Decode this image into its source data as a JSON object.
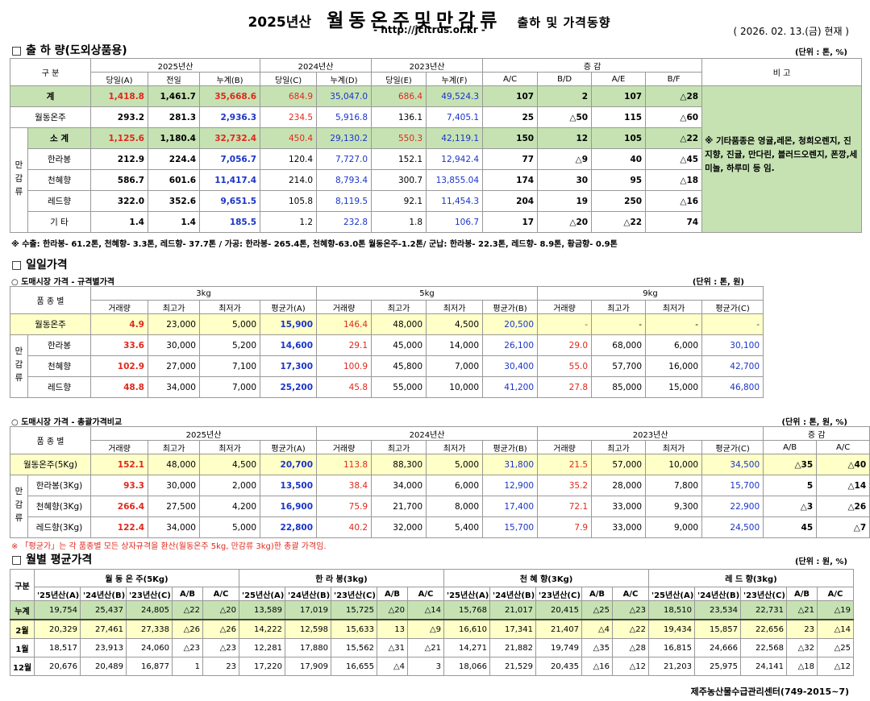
{
  "header": {
    "year_label": "2025년산",
    "main_title": "월동온주및만감류",
    "sub_title": "출하 및 가격동향",
    "url": "- http://jcitrus.or.kr -",
    "date": "( 2026. 02. 13.(금) 현재 )"
  },
  "shipment": {
    "heading": "□ 출 하 량(도외상품용)",
    "unit": "(단위 : 톤, %)",
    "group_headers": {
      "gubun": "구 분",
      "y2025": "2025년산",
      "y2024": "2024년산",
      "y2023": "2023년산",
      "change": "증 감",
      "remark": "비 고"
    },
    "cols": [
      "당일(A)",
      "전일",
      "누계(B)",
      "당일(C)",
      "누계(D)",
      "당일(E)",
      "누계(F)",
      "A/C",
      "B/D",
      "A/E",
      "B/F"
    ],
    "mandarin_label": "만감류",
    "rows": [
      {
        "label": "계",
        "v": [
          "1,418.8",
          "1,461.7",
          "35,668.6",
          "684.9",
          "35,047.0",
          "686.4",
          "49,524.3",
          "107",
          "2",
          "107",
          "△28"
        ]
      },
      {
        "label": "월동온주",
        "v": [
          "293.2",
          "281.3",
          "2,936.3",
          "234.5",
          "5,916.8",
          "136.1",
          "7,405.1",
          "25",
          "△50",
          "115",
          "△60"
        ]
      },
      {
        "label": "소 계",
        "v": [
          "1,125.6",
          "1,180.4",
          "32,732.4",
          "450.4",
          "29,130.2",
          "550.3",
          "42,119.1",
          "150",
          "12",
          "105",
          "△22"
        ]
      },
      {
        "label": "한라봉",
        "v": [
          "212.9",
          "224.4",
          "7,056.7",
          "120.4",
          "7,727.0",
          "152.1",
          "12,942.4",
          "77",
          "△9",
          "40",
          "△45"
        ]
      },
      {
        "label": "천혜향",
        "v": [
          "586.7",
          "601.6",
          "11,417.4",
          "214.0",
          "8,793.4",
          "300.7",
          "13,855.04",
          "174",
          "30",
          "95",
          "△18"
        ]
      },
      {
        "label": "레드향",
        "v": [
          "322.0",
          "352.6",
          "9,651.5",
          "105.8",
          "8,119.5",
          "92.1",
          "11,454.3",
          "204",
          "19",
          "250",
          "△16"
        ]
      },
      {
        "label": "기 타",
        "v": [
          "1.4",
          "1.4",
          "185.5",
          "1.2",
          "232.8",
          "1.8",
          "106.7",
          "17",
          "△20",
          "△22",
          "74"
        ]
      }
    ],
    "remark": "※ 기타품종은 영귤,레몬, 청희오렌지, 진지향, 진귤, 만다린, 블러드오렌지, 폰깡,세미놀, 하루미 등 임.",
    "note": "※ 수출: 한라봉- 61.2톤, 천혜향- 3.3톤, 레드향- 37.7톤 / 가공: 한라봉- 265.4톤, 천혜향-63.0톤 월동온주-1.2톤/ 군납: 한라봉- 22.3톤, 레드향- 8.9톤, 황금향- 0.9톤"
  },
  "daily": {
    "heading": "□ 일일가격",
    "sub1": "○ 도매시장 가격 - 규격별가격",
    "unit1": "(단위 : 톤, 원)",
    "spec_headers": {
      "variety": "품 종 별",
      "s3": "3kg",
      "s5": "5kg",
      "s9": "9kg"
    },
    "spec_cols": [
      "거래량",
      "최고가",
      "최저가",
      "평균가(A)",
      "거래량",
      "최고가",
      "최저가",
      "평균가(B)",
      "거래량",
      "최고가",
      "최저가",
      "평균가(C)"
    ],
    "mandarin_label": "만감류",
    "spec_rows": [
      {
        "label": "월동온주",
        "v": [
          "4.9",
          "23,000",
          "5,000",
          "15,900",
          "146.4",
          "48,000",
          "4,500",
          "20,500",
          "-",
          "-",
          "-",
          "-"
        ]
      },
      {
        "label": "한라봉",
        "v": [
          "33.6",
          "30,000",
          "5,200",
          "14,600",
          "29.1",
          "45,000",
          "14,000",
          "26,100",
          "29.0",
          "68,000",
          "6,000",
          "30,100"
        ]
      },
      {
        "label": "천혜향",
        "v": [
          "102.9",
          "27,000",
          "7,100",
          "17,300",
          "100.9",
          "45,800",
          "7,000",
          "30,400",
          "55.0",
          "57,700",
          "16,000",
          "42,700"
        ]
      },
      {
        "label": "레드향",
        "v": [
          "48.8",
          "34,000",
          "7,000",
          "25,200",
          "45.8",
          "55,000",
          "10,000",
          "41,200",
          "27.8",
          "85,000",
          "15,000",
          "46,800"
        ]
      }
    ],
    "sub2": "○ 도매시장 가격 - 총괄가격비교",
    "unit2": "(단위 : 톤, 원, %)",
    "cmp_headers": {
      "variety": "품 종 별",
      "y2025": "2025년산",
      "y2024": "2024년산",
      "y2023": "2023년산",
      "change": "증 감"
    },
    "cmp_cols": [
      "거래량",
      "최고가",
      "최저가",
      "평균가(A)",
      "거래량",
      "최고가",
      "최저가",
      "평균가(B)",
      "거래량",
      "최고가",
      "최저가",
      "평균가(C)",
      "A/B",
      "A/C"
    ],
    "cmp_rows": [
      {
        "label": "월동온주(5Kg)",
        "v": [
          "152.1",
          "48,000",
          "4,500",
          "20,700",
          "113.8",
          "88,300",
          "5,000",
          "31,800",
          "21.5",
          "57,000",
          "10,000",
          "34,500",
          "△35",
          "△40"
        ]
      },
      {
        "label": "한라봉(3Kg)",
        "v": [
          "93.3",
          "30,000",
          "2,000",
          "13,500",
          "38.4",
          "34,000",
          "6,000",
          "12,900",
          "35.2",
          "28,000",
          "7,800",
          "15,700",
          "5",
          "△14"
        ]
      },
      {
        "label": "천혜향(3Kg)",
        "v": [
          "266.4",
          "27,500",
          "4,200",
          "16,900",
          "75.9",
          "21,700",
          "8,000",
          "17,400",
          "72.1",
          "33,000",
          "9,300",
          "22,900",
          "△3",
          "△26"
        ]
      },
      {
        "label": "레드향(3Kg)",
        "v": [
          "122.4",
          "34,000",
          "5,000",
          "22,800",
          "40.2",
          "32,000",
          "5,400",
          "15,700",
          "7.9",
          "33,000",
          "9,000",
          "24,500",
          "45",
          "△7"
        ]
      }
    ],
    "note": "※ 「평균가」는 각 품종별 모든 상자규격을 환산(월동온주 5kg, 만감류 3kg)한 총괄 가격임."
  },
  "monthly": {
    "heading": "□ 월별 평균가격",
    "unit": "(단위 : 원, %)",
    "headers": {
      "gubun": "구분",
      "g1": "월 동 온 주(5Kg)",
      "g2": "한 라 봉(3kg)",
      "g3": "천 혜 향(3Kg)",
      "g4": "레 드 향(3kg)"
    },
    "cols": [
      "'25년산(A)",
      "'24년산(B)",
      "'23년산(C)",
      "A/B",
      "A/C"
    ],
    "rows": [
      {
        "label": "누계",
        "v": [
          "19,754",
          "25,437",
          "24,805",
          "△22",
          "△20",
          "13,589",
          "17,019",
          "15,725",
          "△20",
          "△14",
          "15,768",
          "21,017",
          "20,415",
          "△25",
          "△23",
          "18,510",
          "23,534",
          "22,731",
          "△21",
          "△19"
        ]
      },
      {
        "label": "2월",
        "v": [
          "20,329",
          "27,461",
          "27,338",
          "△26",
          "△26",
          "14,222",
          "12,598",
          "15,633",
          "13",
          "△9",
          "16,610",
          "17,341",
          "21,407",
          "△4",
          "△22",
          "19,434",
          "15,857",
          "22,656",
          "23",
          "△14"
        ]
      },
      {
        "label": "1월",
        "v": [
          "18,517",
          "23,913",
          "24,060",
          "△23",
          "△23",
          "12,281",
          "17,880",
          "15,562",
          "△31",
          "△21",
          "14,271",
          "21,882",
          "19,749",
          "△35",
          "△28",
          "16,815",
          "24,666",
          "22,568",
          "△32",
          "△25"
        ]
      },
      {
        "label": "12월",
        "v": [
          "20,676",
          "20,489",
          "16,877",
          "1",
          "23",
          "17,220",
          "17,909",
          "16,655",
          "△4",
          "3",
          "18,066",
          "21,529",
          "20,435",
          "△16",
          "△12",
          "21,203",
          "25,975",
          "24,141",
          "△18",
          "△12"
        ]
      }
    ]
  },
  "footer": "제주농산물수급관리센터(749-2015~7)"
}
